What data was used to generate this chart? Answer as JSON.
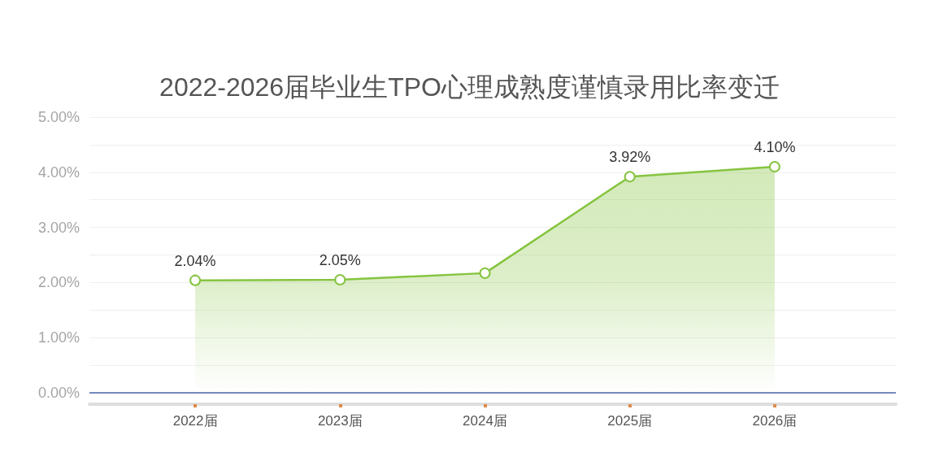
{
  "chart_data": {
    "type": "area",
    "title": "2022-2026届毕业生TPO心理成熟度谨慎录用比率变迁",
    "categories": [
      "2022届",
      "2023届",
      "2024届",
      "2025届",
      "2026届"
    ],
    "values": [
      2.04,
      2.05,
      2.17,
      3.92,
      4.1
    ],
    "value_labels": [
      "2.04%",
      "2.05%",
      null,
      "3.92%",
      "4.10%"
    ],
    "color": "#86c440",
    "ylim": [
      0,
      5
    ],
    "yticks": [
      {
        "value": 0,
        "label": "0.00%"
      },
      {
        "value": 0.5,
        "label": null
      },
      {
        "value": 1,
        "label": "1.00%"
      },
      {
        "value": 1.5,
        "label": null
      },
      {
        "value": 2,
        "label": "2.00%"
      },
      {
        "value": 2.5,
        "label": null
      },
      {
        "value": 3,
        "label": "3.00%"
      },
      {
        "value": 3.5,
        "label": null
      },
      {
        "value": 4,
        "label": "4.00%"
      },
      {
        "value": 4.5,
        "label": null
      },
      {
        "value": 5,
        "label": "5.00%"
      }
    ],
    "grid": "y",
    "marker": "circle",
    "ref_lines": [
      {
        "axis": "y",
        "value": 0,
        "color": "#4a64ad"
      }
    ]
  }
}
